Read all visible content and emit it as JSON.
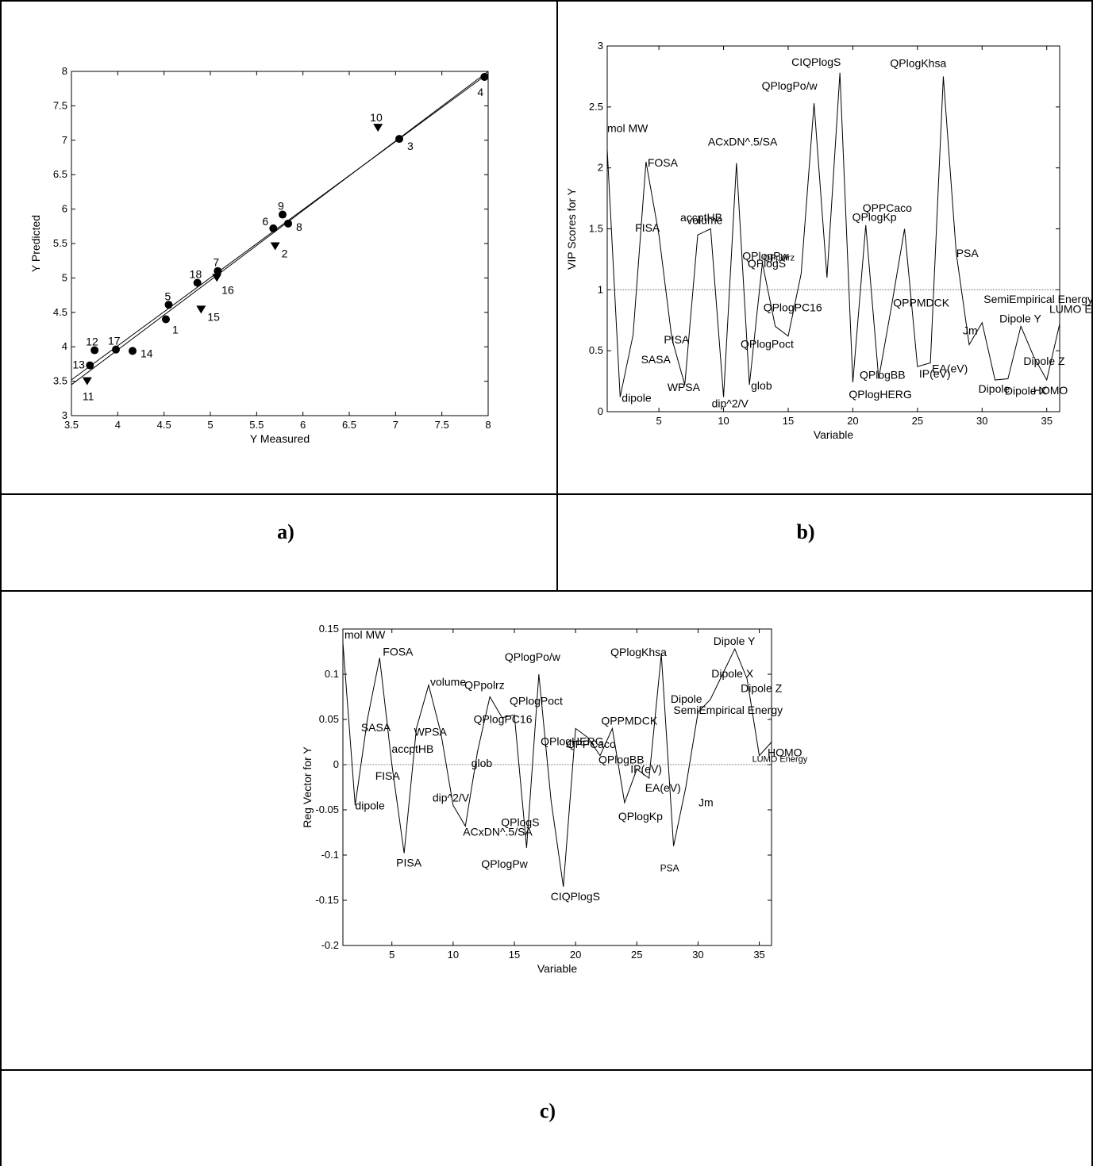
{
  "panels": {
    "a": {
      "caption": "a)"
    },
    "b": {
      "caption": "b)"
    },
    "c": {
      "caption": "c)"
    }
  },
  "chart_data": [
    {
      "id": "a",
      "type": "scatter",
      "xlabel": "Y Measured",
      "ylabel": "Y Predicted",
      "xlim": [
        3.5,
        8
      ],
      "ylim": [
        3,
        8
      ],
      "xticks": [
        "3.5",
        "4",
        "4.5",
        "5",
        "5.5",
        "6",
        "6.5",
        "7",
        "7.5",
        "8"
      ],
      "yticks": [
        "3",
        "3.5",
        "4",
        "4.5",
        "5",
        "5.5",
        "6",
        "6.5",
        "7",
        "7.5",
        "8"
      ],
      "series": [
        {
          "marker": "circle",
          "points": [
            {
              "label": "1",
              "x": 4.52,
              "y": 4.4
            },
            {
              "label": "3",
              "x": 7.04,
              "y": 7.02
            },
            {
              "label": "4",
              "x": 7.96,
              "y": 7.92
            },
            {
              "label": "5",
              "x": 4.55,
              "y": 4.61
            },
            {
              "label": "6",
              "x": 5.68,
              "y": 5.72
            },
            {
              "label": "7",
              "x": 5.08,
              "y": 5.1
            },
            {
              "label": "8",
              "x": 5.84,
              "y": 5.79
            },
            {
              "label": "9",
              "x": 5.78,
              "y": 5.92
            },
            {
              "label": "12",
              "x": 3.75,
              "y": 3.95
            },
            {
              "label": "13",
              "x": 3.7,
              "y": 3.73
            },
            {
              "label": "14",
              "x": 4.16,
              "y": 3.94
            },
            {
              "label": "17",
              "x": 3.98,
              "y": 3.96
            },
            {
              "label": "18",
              "x": 4.86,
              "y": 4.93
            }
          ]
        },
        {
          "marker": "triangle-down",
          "points": [
            {
              "label": "2",
              "x": 5.7,
              "y": 5.46
            },
            {
              "label": "10",
              "x": 6.81,
              "y": 7.18
            },
            {
              "label": "11",
              "x": 3.67,
              "y": 3.5
            },
            {
              "label": "15",
              "x": 4.9,
              "y": 4.54
            },
            {
              "label": "16",
              "x": 5.07,
              "y": 5.0
            }
          ]
        }
      ],
      "lines": [
        {
          "x": [
            3.5,
            8.0
          ],
          "y": [
            3.45,
            8.0
          ]
        },
        {
          "x": [
            3.5,
            8.0
          ],
          "y": [
            3.52,
            7.97
          ]
        }
      ]
    },
    {
      "id": "b",
      "type": "line",
      "xlabel": "Variable",
      "ylabel": "VIP Scores for Y",
      "xlim": [
        1,
        36
      ],
      "ylim": [
        0,
        3
      ],
      "xticks": [
        "5",
        "10",
        "15",
        "20",
        "25",
        "30",
        "35"
      ],
      "yticks": [
        "0",
        "0.5",
        "1",
        "1.5",
        "2",
        "2.5",
        "3"
      ],
      "reference_y": 1,
      "x": [
        1,
        2,
        3,
        4,
        5,
        6,
        7,
        8,
        9,
        10,
        11,
        12,
        13,
        14,
        15,
        16,
        17,
        18,
        19,
        20,
        21,
        22,
        23,
        24,
        25,
        26,
        27,
        28,
        29,
        30,
        31,
        32,
        33,
        34,
        35,
        36
      ],
      "values": [
        2.15,
        0.12,
        0.63,
        2.05,
        1.45,
        0.6,
        0.22,
        1.45,
        1.5,
        0.12,
        2.04,
        0.22,
        1.22,
        0.7,
        0.62,
        1.13,
        2.53,
        1.1,
        2.78,
        0.24,
        1.53,
        0.27,
        0.87,
        1.5,
        0.37,
        0.4,
        2.75,
        1.3,
        0.55,
        0.73,
        0.26,
        0.27,
        0.7,
        0.45,
        0.26,
        0.72
      ],
      "labels": [
        "mol MW",
        "dipole",
        "SASA",
        "FOSA",
        "FISA",
        "PISA",
        "WPSA",
        "accptHB",
        "volume",
        "dip^2/V",
        "ACxDN^.5/SA",
        "glob",
        "QPpolrz",
        "QPlogPC16",
        "QPlogPoct",
        "QPlogPw",
        "QPlogPo/w",
        "QPlogS",
        "CIQPlogS",
        "QPlogHERG",
        "QPPCaco",
        "QPlogBB",
        "QPPMDCK",
        "QPlogKp",
        "IP(eV)",
        "EA(eV)",
        "QPlogKhsa",
        "PSA",
        "Jm",
        "SemiEmpirical Energy",
        "Dipole",
        "Dipole X",
        "Dipole Y",
        "Dipole Z",
        "HOMO",
        "LUMO En"
      ]
    },
    {
      "id": "c",
      "type": "line",
      "xlabel": "Variable",
      "ylabel": "Reg Vector for Y",
      "xlim": [
        1,
        36
      ],
      "ylim": [
        -0.2,
        0.15
      ],
      "xticks": [
        "5",
        "10",
        "15",
        "20",
        "25",
        "30",
        "35"
      ],
      "yticks": [
        "-0.2",
        "-0.15",
        "-0.1",
        "-0.05",
        "0",
        "0.05",
        "0.1",
        "0.15"
      ],
      "reference_y": 0,
      "x": [
        1,
        2,
        3,
        4,
        5,
        6,
        7,
        8,
        9,
        10,
        11,
        12,
        13,
        14,
        15,
        16,
        17,
        18,
        19,
        20,
        21,
        22,
        23,
        24,
        25,
        26,
        27,
        28,
        29,
        30,
        31,
        32,
        33,
        34,
        35,
        36
      ],
      "values": [
        0.135,
        -0.045,
        0.05,
        0.118,
        0.0,
        -0.098,
        0.04,
        0.088,
        0.035,
        -0.045,
        -0.068,
        0.015,
        0.075,
        0.052,
        0.055,
        -0.092,
        0.1,
        -0.04,
        -0.135,
        0.04,
        0.03,
        0.01,
        0.04,
        -0.042,
        -0.005,
        -0.015,
        0.122,
        -0.09,
        -0.025,
        0.058,
        0.072,
        0.1,
        0.128,
        0.095,
        0.01,
        0.025
      ],
      "labels": [
        "mol MW",
        "dipole",
        "SASA",
        "FOSA",
        "FISA",
        "PISA",
        "WPSA",
        "volume",
        "accptHB",
        "dip^2/V",
        "ACxDN^.5/SA",
        "glob",
        "QPpolrz",
        "QPlogPC16",
        "QPlogPoct",
        "QPlogPw",
        "QPlogPo/w",
        "QPlogS",
        "CIQPlogS",
        "QPlogHERG",
        "QPPCaco",
        "QPlogBB",
        "QPPMDCK",
        "QPlogKp",
        "IP(eV)",
        "EA(eV)",
        "QPlogKhsa",
        "PSA",
        "Jm",
        "SemiEmpirical Energy",
        "Dipole",
        "Dipole X",
        "Dipole Y",
        "Dipole Z",
        "LUMO Energy",
        "HOMO"
      ]
    }
  ]
}
